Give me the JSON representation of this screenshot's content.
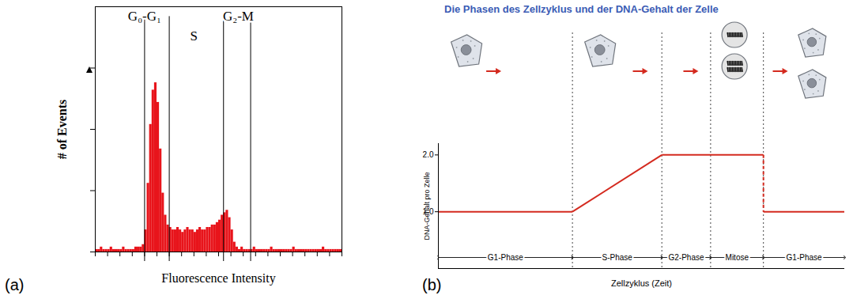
{
  "chart_data": [
    {
      "panel_label": "(a)",
      "type": "histogram",
      "xlabel": "Fluorescence Intensity",
      "ylabel": "# of Events",
      "bins": [
        0,
        1,
        2,
        3,
        4,
        5,
        6,
        7,
        8,
        9,
        10,
        11,
        12,
        13,
        14,
        15,
        16,
        17,
        18,
        19,
        20,
        21,
        22,
        23,
        24,
        25,
        26,
        27,
        28,
        29,
        30,
        31,
        32,
        33,
        34,
        35,
        36,
        37,
        38,
        39,
        40,
        41,
        42,
        43,
        44,
        45,
        46,
        47,
        48,
        49,
        50,
        51,
        52,
        53,
        54,
        55,
        56,
        57,
        58,
        59,
        60,
        61,
        62,
        63,
        64,
        65,
        66,
        67,
        68,
        69,
        70,
        71,
        72,
        73,
        74,
        75,
        76,
        77,
        78,
        79,
        80,
        81,
        82,
        83,
        84,
        85,
        86,
        87,
        88,
        89,
        90,
        91,
        92,
        93,
        94,
        95,
        96,
        97,
        98,
        99,
        100
      ],
      "values": [
        1,
        1,
        2,
        1,
        1,
        1,
        2,
        1,
        1,
        1,
        1,
        2,
        1,
        1,
        1,
        1,
        2,
        2,
        2,
        3,
        9,
        28,
        52,
        66,
        69,
        61,
        42,
        24,
        15,
        11,
        10,
        9,
        9,
        10,
        9,
        8,
        9,
        10,
        9,
        9,
        8,
        9,
        10,
        9,
        9,
        10,
        10,
        11,
        11,
        12,
        13,
        15,
        16,
        17,
        14,
        9,
        4,
        2,
        1,
        2,
        1,
        1,
        1,
        1,
        2,
        1,
        1,
        1,
        1,
        1,
        1,
        2,
        1,
        1,
        1,
        1,
        1,
        1,
        1,
        1,
        2,
        1,
        1,
        1,
        1,
        1,
        1,
        1,
        1,
        1,
        1,
        1,
        2,
        1,
        1,
        1,
        1,
        1,
        1,
        1
      ],
      "color": "#e8141b",
      "xlim": [
        0,
        100
      ],
      "ylim": [
        0,
        100
      ],
      "xticks": [
        0,
        5,
        10,
        15,
        20,
        25,
        30,
        35,
        40,
        45,
        50,
        55,
        60,
        65,
        70,
        75,
        80,
        85,
        90,
        95,
        100
      ],
      "yticks": [
        0,
        25,
        50,
        75
      ],
      "tick_labels": false,
      "gates": [
        20,
        30,
        52,
        63
      ],
      "annotations": [
        {
          "text": "G₀-G₁",
          "x": 20,
          "y": 96
        },
        {
          "text": "S",
          "x": 40,
          "y": 88
        },
        {
          "text": "G₂-M",
          "x": 58,
          "y": 96
        }
      ]
    },
    {
      "panel_label": "(b)",
      "type": "line",
      "title": "Die Phasen des Zellzyklus und der DNA-Gehalt der Zelle",
      "xlabel": "Zellzyklus (Zeit)",
      "ylabel": "DNA-Gehalt pro Zelle",
      "x": [
        0,
        33,
        55,
        80,
        80,
        100
      ],
      "values": [
        1,
        1,
        2,
        2,
        1,
        1
      ],
      "color": "#d42a1f",
      "xlim": [
        0,
        100
      ],
      "ylim": [
        0,
        2.2
      ],
      "yticks": [
        1,
        2
      ],
      "tick_labels": "y",
      "phases": [
        {
          "label": "G1-Phase",
          "start": 0,
          "end": 33
        },
        {
          "label": "S-Phase",
          "start": 33,
          "end": 55
        },
        {
          "label": "G2-Phase",
          "start": 55,
          "end": 67
        },
        {
          "label": "Mitose",
          "start": 67,
          "end": 80
        },
        {
          "label": "G1-Phase",
          "start": 80,
          "end": 100
        }
      ]
    }
  ]
}
